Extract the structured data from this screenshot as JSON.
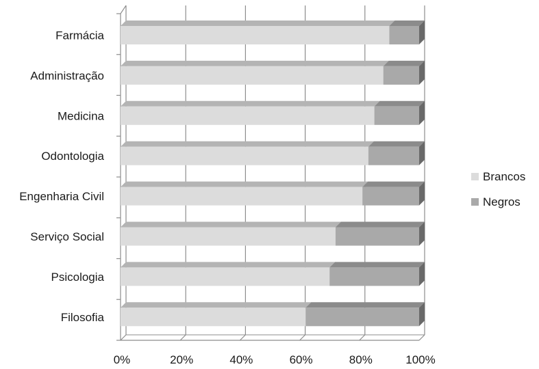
{
  "chart_data": {
    "type": "bar",
    "orientation": "horizontal",
    "stacked": "percent",
    "style": "3d",
    "categories": [
      "Farmácia",
      "Administração",
      "Medicina",
      "Odontologia",
      "Engenharia Civil",
      "Serviço Social",
      "Psicologia",
      "Filosofia"
    ],
    "series": [
      {
        "name": "Brancos",
        "values": [
          90,
          88,
          85,
          83,
          81,
          72,
          70,
          62
        ]
      },
      {
        "name": "Negros",
        "values": [
          10,
          12,
          15,
          17,
          19,
          28,
          30,
          38
        ]
      }
    ],
    "xlim": [
      0,
      100
    ],
    "xticks": [
      "0%",
      "20%",
      "40%",
      "60%",
      "80%",
      "100%"
    ],
    "grid": true,
    "legend": "right",
    "colors": {
      "Brancos": "#dcdcdc",
      "Negros": "#a9a9a9",
      "grid": "#8c8c8c"
    }
  }
}
